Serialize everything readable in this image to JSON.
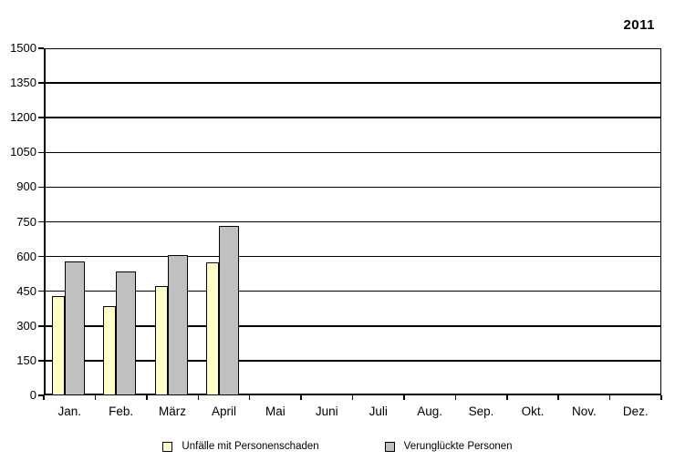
{
  "year_label": "2011",
  "chart_data": {
    "type": "bar",
    "title": "2011",
    "categories": [
      "Jan.",
      "Feb.",
      "März",
      "April",
      "Mai",
      "Juni",
      "Juli",
      "Aug.",
      "Sep.",
      "Okt.",
      "Nov.",
      "Dez."
    ],
    "series": [
      {
        "name": "Unfälle mit Personenschaden",
        "color": "#FFFFC6",
        "border_color": "#000000",
        "values": [
          430,
          385,
          472,
          575,
          null,
          null,
          null,
          null,
          null,
          null,
          null,
          null
        ]
      },
      {
        "name": "Verunglückte Personen",
        "color": "#C0C0C0",
        "border_color": "#000000",
        "values": [
          578,
          537,
          605,
          731,
          null,
          null,
          null,
          null,
          null,
          null,
          null,
          null
        ]
      }
    ],
    "xlabel": "",
    "ylabel": "",
    "ylim": [
      0,
      1500
    ],
    "ytick_step": 150,
    "yticks": [
      0,
      150,
      300,
      450,
      600,
      750,
      900,
      1050,
      1200,
      1350,
      1500
    ],
    "grid": "horizontal",
    "legend_position": "bottom"
  },
  "colors": {
    "background": "#FFFFFF",
    "axis": "#000000",
    "grid": "#000000",
    "text": "#000000",
    "series1_fill": "#FFFFC6",
    "series2_fill": "#C0C0C0"
  }
}
